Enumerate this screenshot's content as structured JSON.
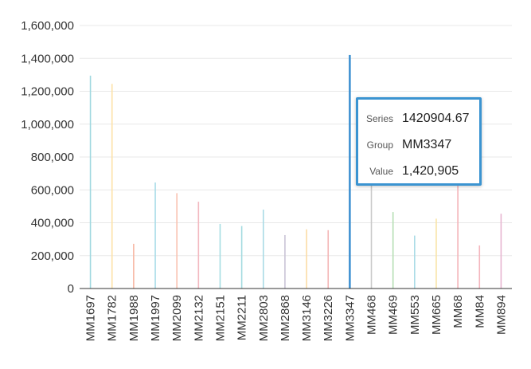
{
  "chart_data": {
    "type": "bar",
    "ylim": [
      0,
      1600000
    ],
    "y_ticks": [
      "0",
      "200,000",
      "400,000",
      "600,000",
      "800,000",
      "1,000,000",
      "1,200,000",
      "1,400,000",
      "1,600,000"
    ],
    "grid": true,
    "categories": [
      "MM1697",
      "MM1782",
      "MM1988",
      "MM1997",
      "MM2099",
      "MM2132",
      "MM2151",
      "MM2211",
      "MM2803",
      "MM2868",
      "MM3146",
      "MM3226",
      "MM3347",
      "MM468",
      "MM469",
      "MM553",
      "MM665",
      "MM68",
      "MM84",
      "MM894"
    ],
    "values": [
      1295000,
      1245000,
      272000,
      645000,
      580000,
      528000,
      393000,
      380000,
      480000,
      325000,
      360000,
      355000,
      1420905,
      660000,
      465000,
      322000,
      425000,
      625000,
      262000,
      455000
    ],
    "colors": [
      "#9fd8e0",
      "#fde2a8",
      "#f7b7a3",
      "#a8dce8",
      "#f9c2b0",
      "#f3b8c0",
      "#a6dde3",
      "#a4dbe0",
      "#a9dbe6",
      "#c9c4d6",
      "#fbdca6",
      "#f4b6b6",
      "#3a8fd0",
      "#c9c9c9",
      "#b6dfb4",
      "#a9dbe6",
      "#f9e4a8",
      "#f4b3b8",
      "#f4b6bd",
      "#e7b5d0"
    ],
    "highlighted_index": 12
  },
  "tooltip": {
    "series_label": "Series",
    "series_value": "1420904.67",
    "group_label": "Group",
    "group_value": "MM3347",
    "value_label": "Value",
    "value_value": "1,420,905"
  }
}
